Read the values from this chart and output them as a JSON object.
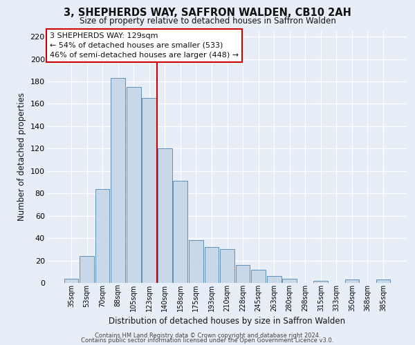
{
  "title": "3, SHEPHERDS WAY, SAFFRON WALDEN, CB10 2AH",
  "subtitle": "Size of property relative to detached houses in Saffron Walden",
  "xlabel": "Distribution of detached houses by size in Saffron Walden",
  "ylabel": "Number of detached properties",
  "bin_labels": [
    "35sqm",
    "53sqm",
    "70sqm",
    "88sqm",
    "105sqm",
    "123sqm",
    "140sqm",
    "158sqm",
    "175sqm",
    "193sqm",
    "210sqm",
    "228sqm",
    "245sqm",
    "263sqm",
    "280sqm",
    "298sqm",
    "315sqm",
    "333sqm",
    "350sqm",
    "368sqm",
    "385sqm"
  ],
  "bar_values": [
    4,
    24,
    84,
    183,
    175,
    165,
    120,
    91,
    38,
    32,
    30,
    16,
    12,
    6,
    4,
    0,
    2,
    0,
    3,
    0,
    3
  ],
  "bar_color": "#c8d8e8",
  "bar_edge_color": "#6090b8",
  "ylim": [
    0,
    225
  ],
  "yticks": [
    0,
    20,
    40,
    60,
    80,
    100,
    120,
    140,
    160,
    180,
    200,
    220
  ],
  "vline_x_index": 5.5,
  "annotation_title": "3 SHEPHERDS WAY: 129sqm",
  "annotation_line1": "← 54% of detached houses are smaller (533)",
  "annotation_line2": "46% of semi-detached houses are larger (448) →",
  "annotation_box_color": "#ffffff",
  "annotation_border_color": "#cc0000",
  "vline_color": "#cc0000",
  "footer1": "Contains HM Land Registry data © Crown copyright and database right 2024.",
  "footer2": "Contains public sector information licensed under the Open Government Licence v3.0.",
  "background_color": "#e8eef8",
  "grid_color": "#ffffff"
}
